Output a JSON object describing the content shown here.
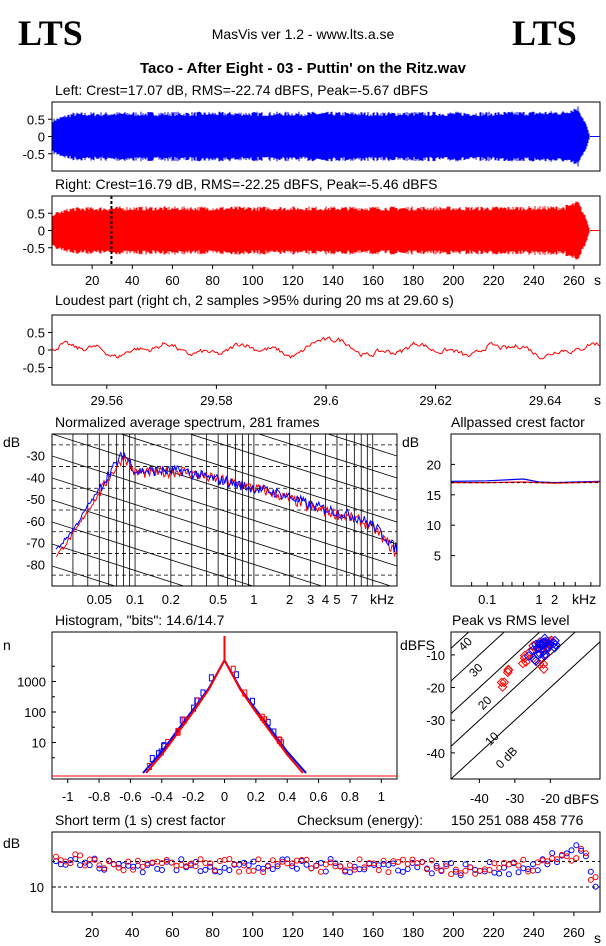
{
  "header": {
    "logo_left": "LTS",
    "logo_right": "LTS",
    "app_title": "MasVis ver 1.2 - www.lts.a.se",
    "file_title": "Taco - After Eight - 03 - Puttin' on the Ritz.wav"
  },
  "colors": {
    "left": "#0000ff",
    "right": "#ff0000",
    "axis": "#000000"
  },
  "chart_data": [
    {
      "type": "area",
      "id": "left-waveform",
      "title": "Left: Crest=17.07 dB, RMS=-22.74 dBFS, Peak=-5.67 dBFS",
      "channel": "left",
      "ylim": [
        -1,
        1
      ],
      "yticks": [
        "0.5",
        "0",
        "-0.5"
      ],
      "duration_s": 273,
      "envelope": {
        "x": [
          0,
          10,
          40,
          100,
          160,
          220,
          255,
          262,
          266,
          268
        ],
        "y": [
          0.5,
          0.7,
          0.72,
          0.72,
          0.72,
          0.72,
          0.75,
          0.9,
          0.4,
          0.0
        ]
      }
    },
    {
      "type": "area",
      "id": "right-waveform",
      "title": "Right: Crest=16.79 dB, RMS=-22.25 dBFS, Peak=-5.46 dBFS",
      "channel": "right",
      "ylim": [
        -1,
        1
      ],
      "yticks": [
        "0.5",
        "0",
        "-0.5"
      ],
      "xticks": [
        "20",
        "40",
        "60",
        "80",
        "100",
        "120",
        "140",
        "160",
        "180",
        "200",
        "220",
        "240",
        "260"
      ],
      "xunit": "s",
      "marker_s": 29.6,
      "duration_s": 273,
      "envelope": {
        "x": [
          0,
          10,
          40,
          100,
          160,
          220,
          255,
          262,
          266,
          268
        ],
        "y": [
          0.5,
          0.68,
          0.7,
          0.7,
          0.7,
          0.7,
          0.72,
          0.88,
          0.4,
          0.0
        ]
      }
    },
    {
      "type": "line",
      "id": "loudest-part",
      "title": "Loudest part (right ch, 2 samples >95% during 20 ms at 29.60 s)",
      "x_range": [
        29.55,
        29.65
      ],
      "xticks": [
        "29.56",
        "29.58",
        "29.6",
        "29.62",
        "29.64"
      ],
      "xunit": "s",
      "ylim": [
        -1,
        1
      ],
      "yticks": [
        "0.5",
        "0",
        "-0.5"
      ]
    },
    {
      "type": "line",
      "id": "spectrum",
      "title": "Normalized average spectrum, 281 frames",
      "ylabel": "dB",
      "yticks": [
        "-30",
        "-40",
        "-50",
        "-60",
        "-70",
        "-80"
      ],
      "ylim": [
        -90,
        -20
      ],
      "xticks": [
        "0.05",
        "0.1",
        "0.2",
        "0.5",
        "1",
        "2",
        "3",
        "4",
        "5",
        "7"
      ],
      "xunit": "kHz",
      "x_range_khz": [
        0.02,
        16
      ],
      "series": [
        {
          "name": "left",
          "x": [
            0.02,
            0.03,
            0.04,
            0.06,
            0.08,
            0.1,
            0.15,
            0.25,
            0.4,
            0.7,
            1,
            2,
            3,
            5,
            7,
            10,
            15
          ],
          "y": [
            -75,
            -64,
            -53,
            -38,
            -29,
            -37,
            -37,
            -37,
            -40,
            -43,
            -45,
            -49,
            -53,
            -56,
            -58,
            -62,
            -72
          ]
        },
        {
          "name": "right",
          "x": [
            0.02,
            0.03,
            0.04,
            0.06,
            0.08,
            0.1,
            0.15,
            0.25,
            0.4,
            0.7,
            1,
            2,
            3,
            5,
            7,
            10,
            15
          ],
          "y": [
            -78,
            -66,
            -55,
            -40,
            -30,
            -38,
            -38,
            -37,
            -40,
            -43,
            -45,
            -50,
            -54,
            -57,
            -59,
            -63,
            -74
          ]
        }
      ]
    },
    {
      "type": "line",
      "id": "allpassed-crest",
      "title": "Allpassed crest factor",
      "ylabel": "dB",
      "yticks": [
        "20",
        "15",
        "10",
        "5"
      ],
      "ylim": [
        0,
        25
      ],
      "xticks": [
        "0.1",
        "1",
        "2"
      ],
      "xunit": "kHz",
      "series": [
        {
          "name": "left",
          "x": [
            0.02,
            0.1,
            0.5,
            1,
            2,
            5,
            15
          ],
          "y": [
            17.2,
            17.3,
            17.6,
            17.1,
            17.0,
            17.1,
            17.2
          ]
        },
        {
          "name": "right",
          "x": [
            0.02,
            0.1,
            0.5,
            1,
            2,
            5,
            15
          ],
          "y": [
            17.0,
            17.0,
            17.1,
            17.0,
            16.9,
            17.0,
            17.1
          ]
        }
      ]
    },
    {
      "type": "line",
      "id": "histogram",
      "title": "Histogram, \"bits\": 14.6/14.7",
      "ylabel": "n",
      "yticks": [
        "1000",
        "100",
        "10"
      ],
      "xticks": [
        "-1",
        "-0.8",
        "-0.6",
        "-0.4",
        "-0.2",
        "0",
        "0.2",
        "0.4",
        "0.6",
        "0.8",
        "1"
      ],
      "x_range": [
        -1.1,
        1.1
      ],
      "series": [
        {
          "name": "left",
          "x": [
            -0.52,
            -0.4,
            -0.3,
            -0.2,
            -0.1,
            0,
            0.1,
            0.2,
            0.3,
            0.4,
            0.52
          ],
          "y": [
            1,
            5,
            25,
            120,
            600,
            5000,
            600,
            120,
            25,
            5,
            1
          ]
        },
        {
          "name": "right",
          "x": [
            -0.5,
            -0.4,
            -0.3,
            -0.2,
            -0.1,
            0,
            0.1,
            0.2,
            0.3,
            0.4,
            0.5
          ],
          "y": [
            1,
            4,
            20,
            100,
            550,
            5000,
            550,
            100,
            20,
            4,
            1
          ]
        }
      ]
    },
    {
      "type": "scatter",
      "id": "peak-vs-rms",
      "title": "Peak vs RMS level",
      "ylabel": "dBFS",
      "xlabel": "dBFS",
      "yticks": [
        "-10",
        "-20",
        "-30",
        "-40"
      ],
      "xticks": [
        "-40",
        "-30",
        "-20"
      ],
      "diagonal_labels": [
        "40",
        "30",
        "20",
        "10",
        "0 dB"
      ],
      "series": [
        {
          "name": "left",
          "x": [
            -24,
            -23,
            -22,
            -21,
            -20,
            -19,
            -22,
            -25,
            -21
          ],
          "y": [
            -9,
            -7,
            -6,
            -8,
            -7,
            -6,
            -10,
            -11,
            -5
          ]
        },
        {
          "name": "right",
          "x": [
            -26,
            -24,
            -23,
            -22,
            -21,
            -20,
            -28,
            -31,
            -33,
            -23
          ],
          "y": [
            -10,
            -8,
            -7,
            -9,
            -7,
            -6,
            -12,
            -15,
            -19,
            -14
          ]
        }
      ]
    },
    {
      "type": "scatter",
      "id": "short-term-crest",
      "title": "Short term (1 s) crest factor",
      "checksum_label": "Checksum (energy):",
      "checksum_value": "150 251 088 458 776",
      "ylabel": "dB",
      "yticks": [
        "10"
      ],
      "xticks": [
        "20",
        "40",
        "60",
        "80",
        "100",
        "120",
        "140",
        "160",
        "180",
        "200",
        "220",
        "240",
        "260"
      ],
      "xunit": "s",
      "series": [
        {
          "name": "left",
          "x": [
            5,
            30,
            60,
            90,
            120,
            150,
            180,
            210,
            240,
            260,
            265,
            270
          ],
          "y": [
            13,
            12.5,
            12.5,
            12.5,
            12.5,
            12.5,
            12.5,
            12,
            12.5,
            14,
            15,
            10
          ]
        },
        {
          "name": "right",
          "x": [
            5,
            30,
            60,
            90,
            120,
            150,
            180,
            210,
            240,
            260,
            265,
            270
          ],
          "y": [
            13.5,
            12.5,
            12.5,
            12.5,
            12.5,
            12.5,
            12.5,
            12,
            12.5,
            13.5,
            14,
            10.5
          ]
        }
      ]
    }
  ]
}
